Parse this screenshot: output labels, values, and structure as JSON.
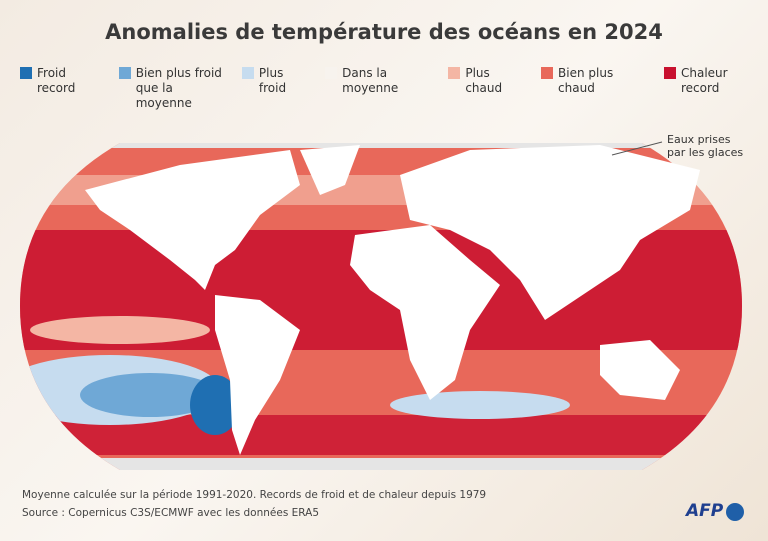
{
  "title": "Anomalies de température des océans en 2024",
  "legend": [
    {
      "label": "Froid record",
      "color": "#1f6fb2"
    },
    {
      "label": "Bien plus froid que la moyenne",
      "color": "#6fa8d6"
    },
    {
      "label": "Plus froid",
      "color": "#c6dcef"
    },
    {
      "label": "Dans la moyenne",
      "color": "#f7f3ee"
    },
    {
      "label": "Plus chaud",
      "color": "#f4b6a4"
    },
    {
      "label": "Bien plus chaud",
      "color": "#e8685a"
    },
    {
      "label": "Chaleur record",
      "color": "#c8102e"
    }
  ],
  "annotation": "Eaux prises par les glaces",
  "notes": [
    "Moyenne calculée sur la période 1991-2020. Records de froid et de chaleur depuis 1979",
    "Source : Copernicus C3S/ECMWF avec les données ERA5"
  ],
  "logo": "AFP"
}
